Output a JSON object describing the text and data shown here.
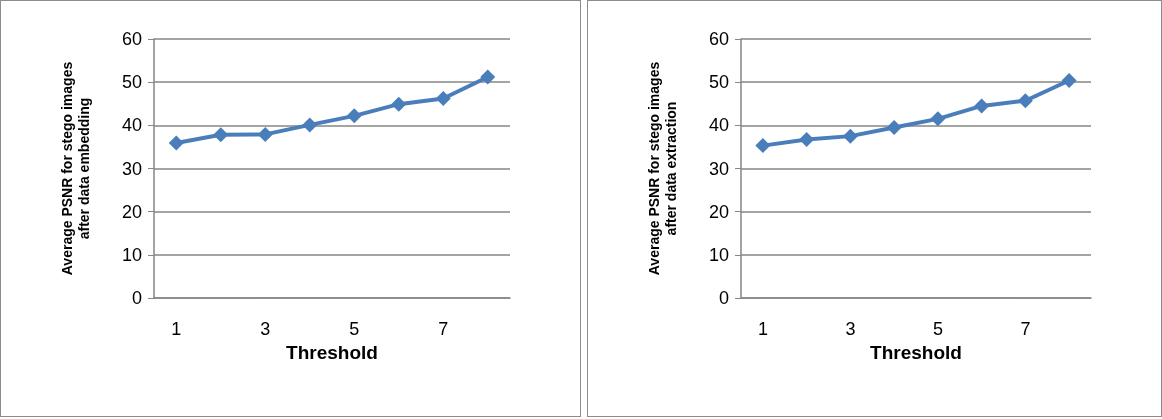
{
  "chart_data": [
    {
      "type": "line",
      "xlabel": "Threshold",
      "ylabel": "Average PSNR for stego images after data embedding",
      "categories": [
        "1",
        null,
        "3",
        null,
        "5",
        null,
        "7",
        null
      ],
      "series": [
        {
          "color": "#4a7ebb",
          "values": [
            35.9,
            37.8,
            37.9,
            40.1,
            42.2,
            44.9,
            46.2,
            51.2
          ]
        }
      ],
      "ylim": [
        0,
        60
      ],
      "yticks": [
        0,
        10,
        20,
        30,
        40,
        50,
        60
      ],
      "grid": "y",
      "marker": "diamond",
      "line_style": "solid"
    },
    {
      "type": "line",
      "xlabel": "Threshold",
      "ylabel": "Average PSNR for stego images after data extraction",
      "categories": [
        "1",
        null,
        "3",
        null,
        "5",
        null,
        "7",
        null
      ],
      "series": [
        {
          "color": "#4a7ebb",
          "values": [
            35.3,
            36.7,
            37.5,
            39.5,
            41.5,
            44.5,
            45.7,
            50.4
          ]
        }
      ],
      "ylim": [
        0,
        60
      ],
      "yticks": [
        0,
        10,
        20,
        30,
        40,
        50,
        60
      ],
      "grid": "y",
      "marker": "diamond",
      "line_style": "solid"
    }
  ]
}
